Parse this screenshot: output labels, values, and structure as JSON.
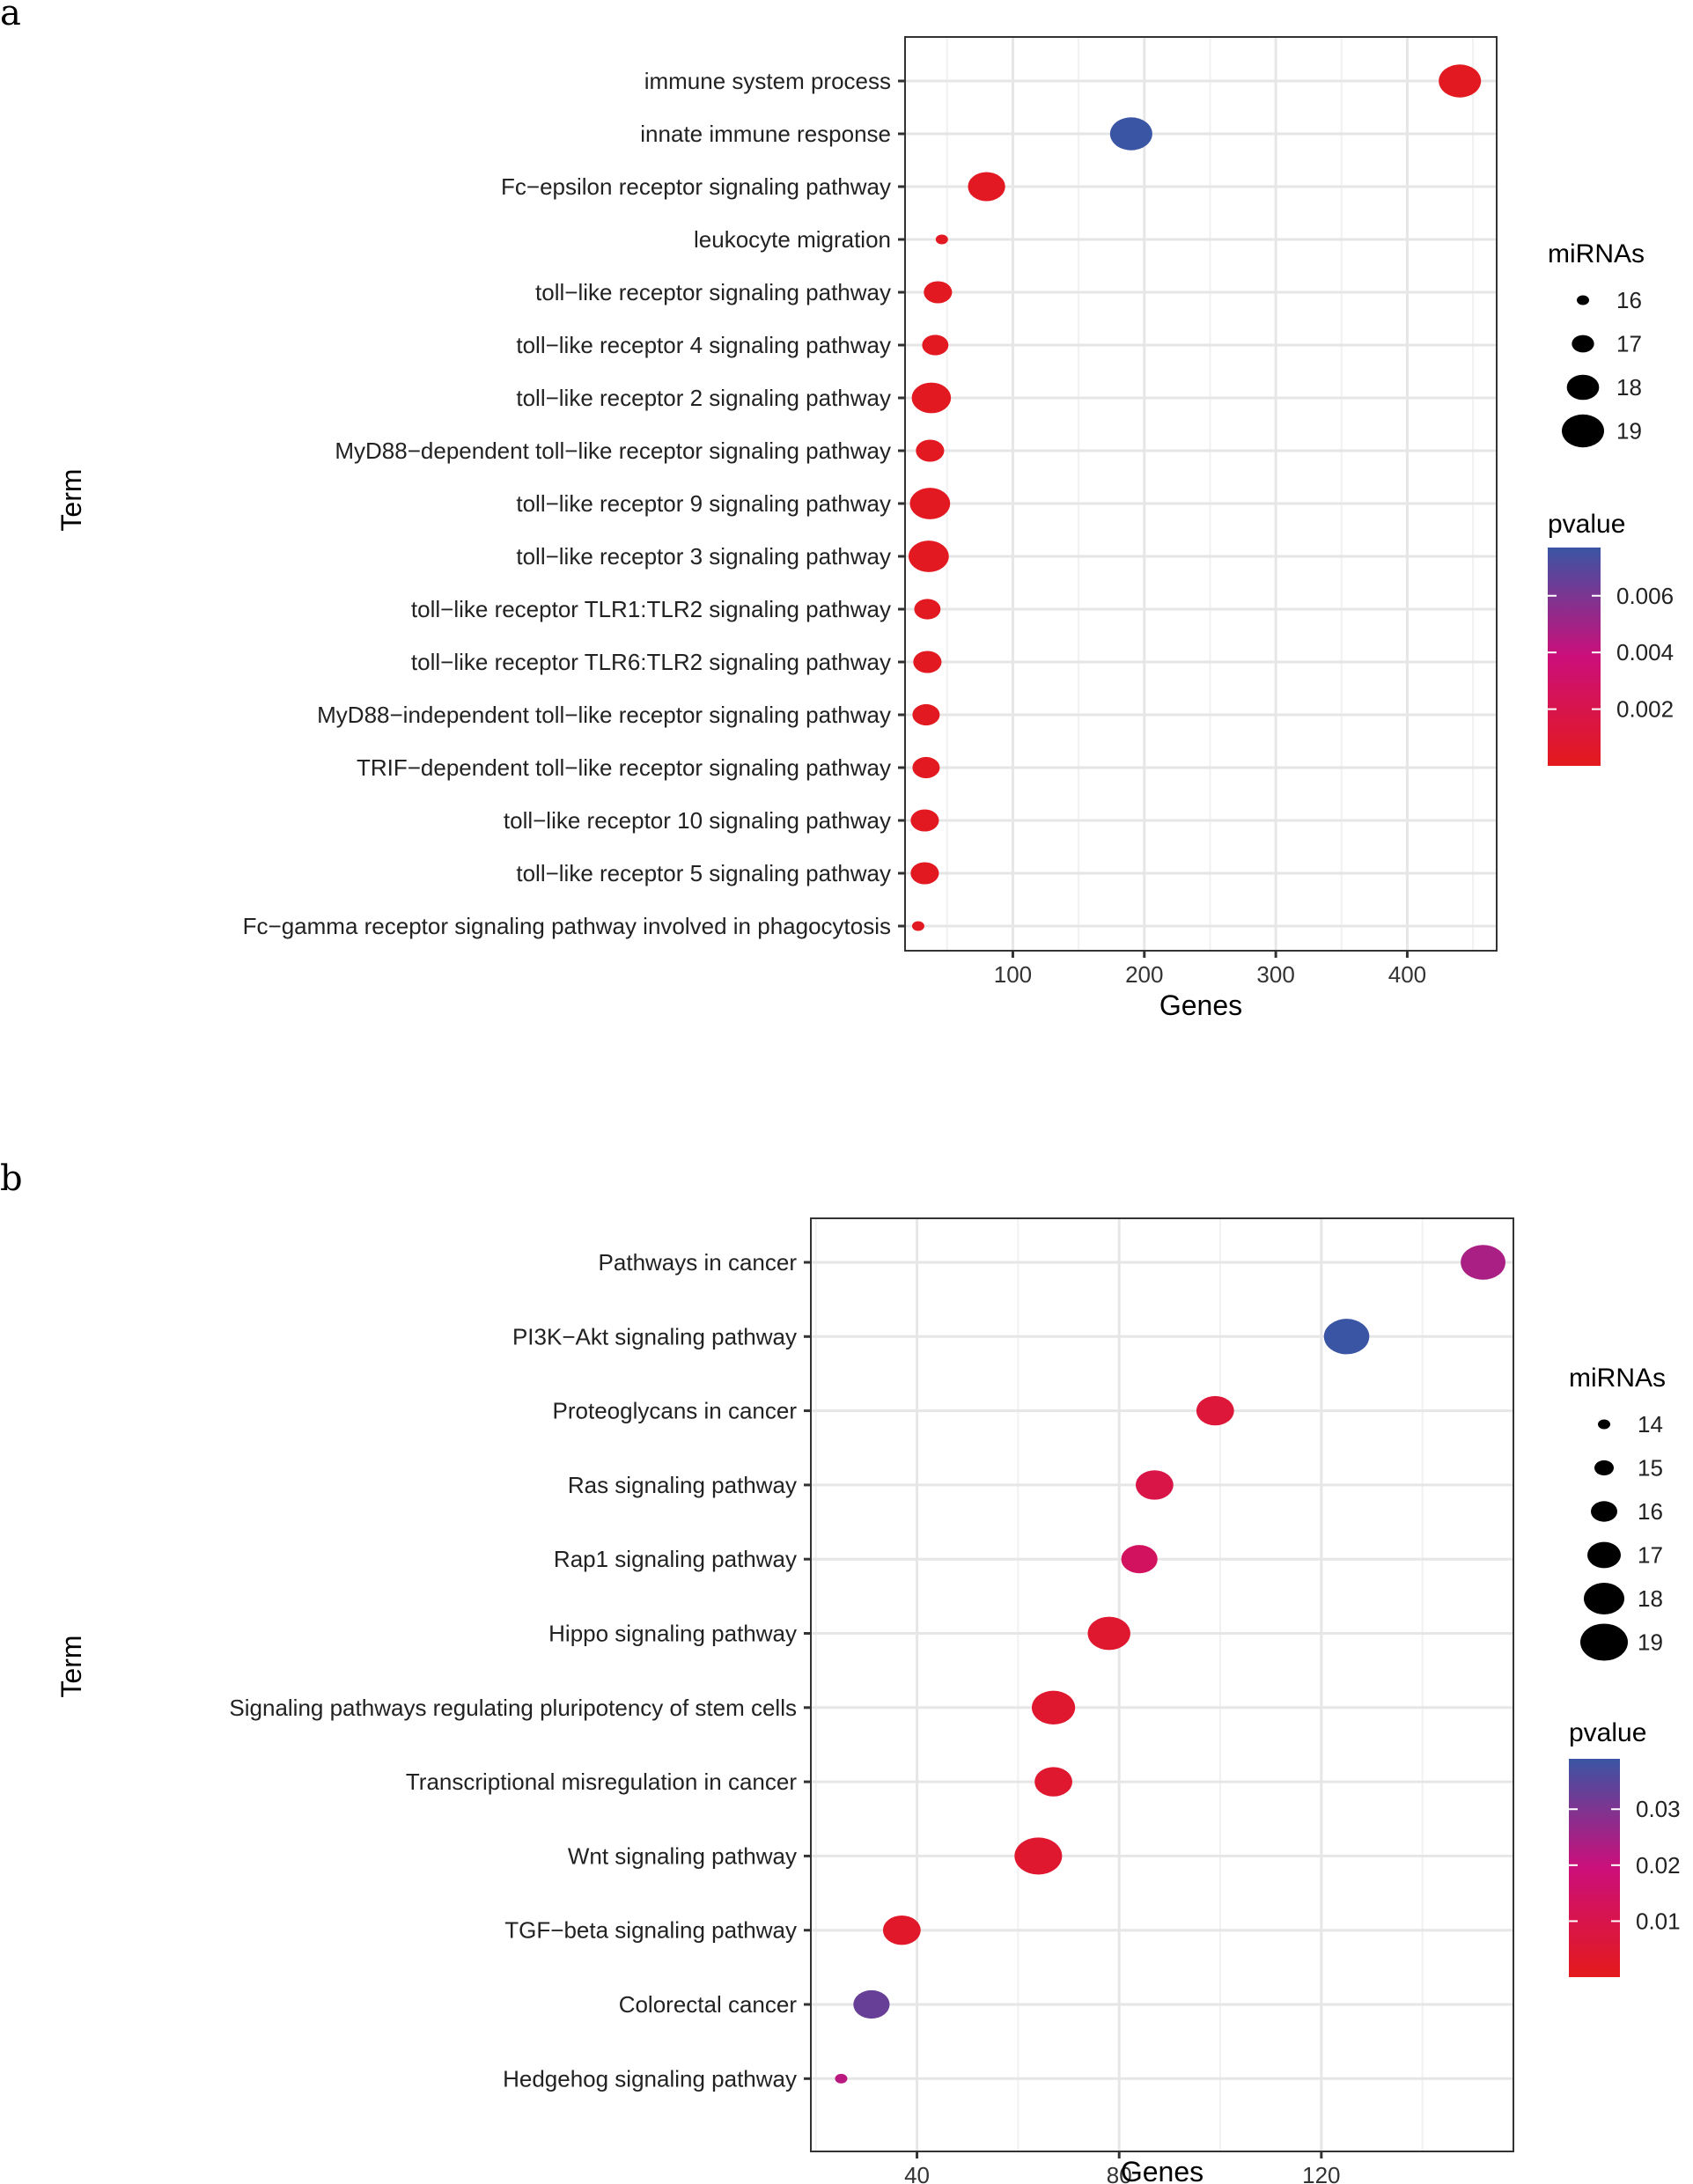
{
  "chart_data": [
    {
      "type": "scatter",
      "panel_label": "a",
      "xlabel": "Genes",
      "ylabel": "Term",
      "xlim": [
        18,
        468
      ],
      "xticks": [
        100,
        200,
        300,
        400
      ],
      "xtick_labels": [
        "100",
        "200",
        "300",
        "400"
      ],
      "size_legend": {
        "title": "miRNAs",
        "values": [
          16,
          17,
          18,
          19
        ],
        "labels": [
          "16",
          "17",
          "18",
          "19"
        ]
      },
      "color_legend": {
        "title": "pvalue",
        "range": [
          0.0,
          0.0077
        ],
        "ticks": [
          0.006,
          0.004,
          0.002
        ],
        "labels": [
          "0.006",
          "0.004",
          "0.002"
        ],
        "low_color": "#e41a1c",
        "mid_color": "#cc0f7a",
        "high_color": "#3a55a4"
      },
      "points": [
        {
          "term": "immune system process",
          "genes": 440,
          "mirnas": 19,
          "pvalue": 0.0002
        },
        {
          "term": "innate immune response",
          "genes": 190,
          "mirnas": 19,
          "pvalue": 0.0077
        },
        {
          "term": "Fc−epsilon receptor signaling pathway",
          "genes": 80,
          "mirnas": 18.5,
          "pvalue": 0.0003
        },
        {
          "term": "leukocyte migration",
          "genes": 46,
          "mirnas": 16,
          "pvalue": 0.0003
        },
        {
          "term": "toll−like receptor signaling pathway",
          "genes": 43,
          "mirnas": 17.6,
          "pvalue": 0.0002
        },
        {
          "term": "toll−like receptor 4 signaling pathway",
          "genes": 41,
          "mirnas": 17.4,
          "pvalue": 0.0002
        },
        {
          "term": "toll−like receptor 2 signaling pathway",
          "genes": 38,
          "mirnas": 18.7,
          "pvalue": 0.0002
        },
        {
          "term": "MyD88−dependent toll−like receptor signaling pathway",
          "genes": 37,
          "mirnas": 17.6,
          "pvalue": 0.0002
        },
        {
          "term": "toll−like receptor 9 signaling pathway",
          "genes": 37,
          "mirnas": 18.8,
          "pvalue": 0.0002
        },
        {
          "term": "toll−like receptor 3 signaling pathway",
          "genes": 36,
          "mirnas": 18.8,
          "pvalue": 0.0002
        },
        {
          "term": "toll−like receptor TLR1:TLR2 signaling pathway",
          "genes": 35,
          "mirnas": 17.4,
          "pvalue": 0.0002
        },
        {
          "term": "toll−like receptor TLR6:TLR2 signaling pathway",
          "genes": 35,
          "mirnas": 17.6,
          "pvalue": 0.0002
        },
        {
          "term": "MyD88−independent toll−like receptor signaling pathway",
          "genes": 34,
          "mirnas": 17.5,
          "pvalue": 0.0002
        },
        {
          "term": "TRIF−dependent toll−like receptor signaling pathway",
          "genes": 34,
          "mirnas": 17.5,
          "pvalue": 0.0002
        },
        {
          "term": "toll−like receptor 10 signaling pathway",
          "genes": 33,
          "mirnas": 17.6,
          "pvalue": 0.0002
        },
        {
          "term": "toll−like receptor 5 signaling pathway",
          "genes": 33,
          "mirnas": 17.6,
          "pvalue": 0.0002
        },
        {
          "term": "Fc−gamma receptor signaling pathway involved in phagocytosis",
          "genes": 28,
          "mirnas": 16,
          "pvalue": 0.0002
        }
      ]
    },
    {
      "type": "scatter",
      "panel_label": "b",
      "xlabel": "Genes",
      "ylabel": "Term",
      "xlim": [
        19,
        158
      ],
      "xticks": [
        40,
        80,
        120
      ],
      "xtick_labels": [
        "40",
        "80",
        "120"
      ],
      "size_legend": {
        "title": "miRNAs",
        "values": [
          14,
          15,
          16,
          17,
          18,
          19
        ],
        "labels": [
          "14",
          "15",
          "16",
          "17",
          "18",
          "19"
        ]
      },
      "color_legend": {
        "title": "pvalue",
        "range": [
          0.0,
          0.039
        ],
        "ticks": [
          0.03,
          0.02,
          0.01
        ],
        "labels": [
          "0.03",
          "0.02",
          "0.01"
        ],
        "low_color": "#e41a1c",
        "mid_color": "#cc0f7a",
        "high_color": "#3a55a4"
      },
      "points": [
        {
          "term": "Pathways in cancer",
          "genes": 152,
          "mirnas": 18.6,
          "pvalue": 0.024
        },
        {
          "term": "PI3K−Akt signaling pathway",
          "genes": 125,
          "mirnas": 18.7,
          "pvalue": 0.039
        },
        {
          "term": "Proteoglycans in cancer",
          "genes": 99,
          "mirnas": 17.6,
          "pvalue": 0.006
        },
        {
          "term": "Ras signaling pathway",
          "genes": 87,
          "mirnas": 17.6,
          "pvalue": 0.009
        },
        {
          "term": "Rap1 signaling pathway",
          "genes": 84,
          "mirnas": 17.4,
          "pvalue": 0.014
        },
        {
          "term": "Hippo signaling pathway",
          "genes": 78,
          "mirnas": 18.3,
          "pvalue": 0.004
        },
        {
          "term": "Signaling pathways regulating pluripotency of stem cells",
          "genes": 67,
          "mirnas": 18.4,
          "pvalue": 0.004
        },
        {
          "term": "Transcriptional misregulation in cancer",
          "genes": 67,
          "mirnas": 17.6,
          "pvalue": 0.004
        },
        {
          "term": "Wnt signaling pathway",
          "genes": 64,
          "mirnas": 19,
          "pvalue": 0.004
        },
        {
          "term": "TGF−beta signaling pathway",
          "genes": 37,
          "mirnas": 17.6,
          "pvalue": 0.003
        },
        {
          "term": "Colorectal cancer",
          "genes": 31,
          "mirnas": 17.4,
          "pvalue": 0.033
        },
        {
          "term": "Hedgehog signaling pathway",
          "genes": 25,
          "mirnas": 14,
          "pvalue": 0.022
        }
      ]
    }
  ]
}
